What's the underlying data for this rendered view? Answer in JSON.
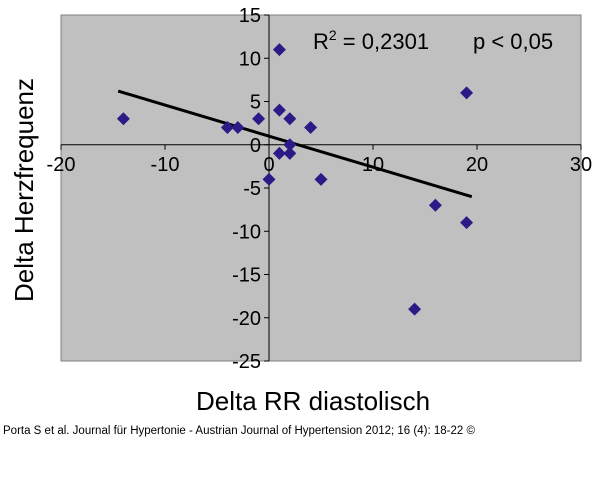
{
  "chart_data": {
    "type": "scatter",
    "title": "",
    "xlabel": "Delta RR diastolisch",
    "ylabel": "Delta Herzfrequenz",
    "xlim": [
      -20,
      30
    ],
    "ylim": [
      -25,
      15
    ],
    "xticks": [
      -20,
      -10,
      0,
      10,
      20,
      30
    ],
    "yticks": [
      15,
      10,
      5,
      0,
      -5,
      -10,
      -15,
      -20,
      -25
    ],
    "xtick_labels": [
      "-20",
      "-10",
      "0",
      "10",
      "20",
      "30"
    ],
    "ytick_labels": [
      "15",
      "10",
      "5",
      "0",
      "-5",
      "-10",
      "-15",
      "-20",
      "-25"
    ],
    "grid": false,
    "background_color": "#c0c0c0",
    "marker_color": "#2e1a87",
    "trendline_color": "#000000",
    "series": [
      {
        "marker": "diamond",
        "points": [
          {
            "x": -14,
            "y": 3
          },
          {
            "x": -4,
            "y": 2
          },
          {
            "x": -3,
            "y": 2
          },
          {
            "x": -1,
            "y": 3
          },
          {
            "x": 1,
            "y": 11
          },
          {
            "x": 1,
            "y": 4
          },
          {
            "x": 2,
            "y": 3
          },
          {
            "x": 4,
            "y": 2
          },
          {
            "x": 2,
            "y": 0
          },
          {
            "x": 1,
            "y": -1
          },
          {
            "x": 2,
            "y": -1
          },
          {
            "x": 0,
            "y": -4
          },
          {
            "x": 5,
            "y": -4
          },
          {
            "x": 16,
            "y": -7
          },
          {
            "x": 19,
            "y": -9
          },
          {
            "x": 19,
            "y": 6
          },
          {
            "x": 14,
            "y": -19
          }
        ]
      }
    ],
    "trendline": {
      "x1": -14.5,
      "y1": 6.2,
      "x2": 19.5,
      "y2": -6
    },
    "annotation": {
      "r_label": "R",
      "r_sup": "2",
      "r_value": " = 0,2301",
      "p_value": "p < 0,05"
    }
  },
  "citation": "Porta S et al. Journal für Hypertonie - Austrian Journal of Hypertension 2012; 16 (4): 18-22 ©"
}
